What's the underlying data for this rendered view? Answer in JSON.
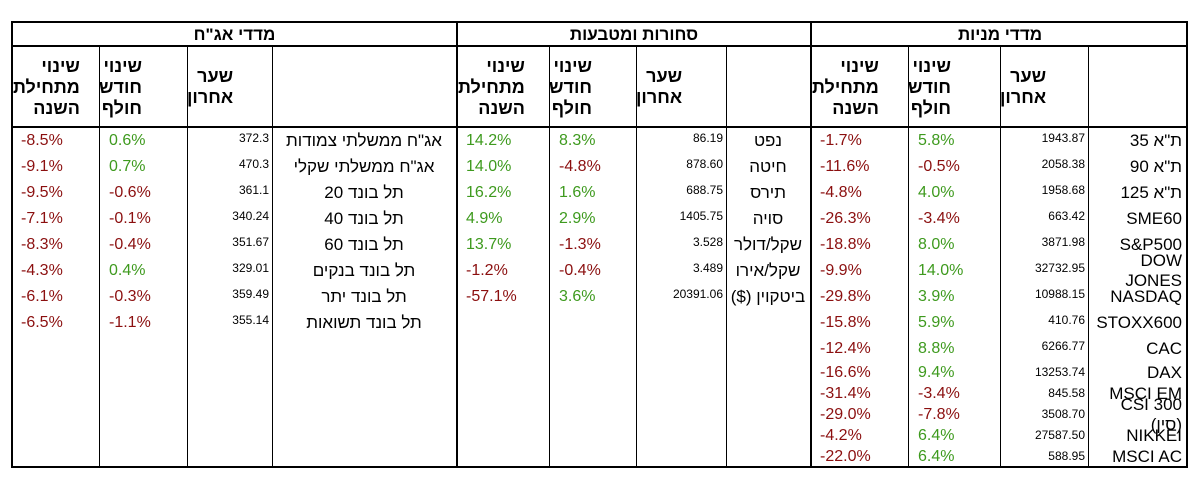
{
  "sections": {
    "stocks": {
      "title": "מדדי מניות",
      "headers": {
        "name": "",
        "last": "שער\nאחרון",
        "month": "שינוי\nחודש\nחולף",
        "ytd": "שינוי\nמתחילת\nהשנה"
      },
      "rows": [
        {
          "name": "ת\"א 35",
          "last": "1943.87",
          "month": "5.8%",
          "ytd": "-1.7%"
        },
        {
          "name": "ת\"א 90",
          "last": "2058.38",
          "month": "-0.5%",
          "ytd": "-11.6%"
        },
        {
          "name": "ת\"א 125",
          "last": "1958.68",
          "month": "4.0%",
          "ytd": "-4.8%"
        },
        {
          "name": "SME60",
          "last": "663.42",
          "month": "-3.4%",
          "ytd": "-26.3%"
        },
        {
          "name": "S&P500",
          "last": "3871.98",
          "month": "8.0%",
          "ytd": "-18.8%"
        },
        {
          "name": "DOW JONES",
          "last": "32732.95",
          "month": "14.0%",
          "ytd": "-9.9%"
        },
        {
          "name": "NASDAQ",
          "last": "10988.15",
          "month": "3.9%",
          "ytd": "-29.8%"
        },
        {
          "name": "STOXX600",
          "last": "410.76",
          "month": "5.9%",
          "ytd": "-15.8%"
        },
        {
          "name": "CAC",
          "last": "6266.77",
          "month": "8.8%",
          "ytd": "-12.4%"
        },
        {
          "name": "DAX",
          "last": "13253.74",
          "month": "9.4%",
          "ytd": "-16.6%"
        },
        {
          "name": "MSCI EM",
          "last": "845.58",
          "month": "-3.4%",
          "ytd": "-31.4%"
        },
        {
          "name": "CSI 300 (סין)",
          "last": "3508.70",
          "month": "-7.8%",
          "ytd": "-29.0%"
        },
        {
          "name": "NIKKEI",
          "last": "27587.50",
          "month": "6.4%",
          "ytd": "-4.2%"
        },
        {
          "name": "MSCI AC",
          "last": "588.95",
          "month": "6.4%",
          "ytd": "-22.0%"
        }
      ]
    },
    "commodities": {
      "title": "סחורות ומטבעות",
      "headers": {
        "name": "",
        "last": "שער\nאחרון",
        "month": "שינוי\nחודש\nחולף",
        "ytd": "שינוי\nמתחילת\nהשנה"
      },
      "rows": [
        {
          "name": "נפט",
          "last": "86.19",
          "month": "8.3%",
          "ytd": "14.2%"
        },
        {
          "name": "חיטה",
          "last": "878.60",
          "month": "-4.8%",
          "ytd": "14.0%"
        },
        {
          "name": "תירס",
          "last": "688.75",
          "month": "1.6%",
          "ytd": "16.2%"
        },
        {
          "name": "סויה",
          "last": "1405.75",
          "month": "2.9%",
          "ytd": "4.9%"
        },
        {
          "name": "שקל/דולר",
          "last": "3.528",
          "month": "-1.3%",
          "ytd": "13.7%"
        },
        {
          "name": "שקל/אירו",
          "last": "3.489",
          "month": "-0.4%",
          "ytd": "-1.2%"
        },
        {
          "name": "ביטקוין ($)",
          "last": "20391.06",
          "month": "3.6%",
          "ytd": "-57.1%"
        }
      ]
    },
    "bonds": {
      "title": "מדדי אג\"ח",
      "headers": {
        "name": "",
        "last": "שער\nאחרון",
        "month": "שינוי\nחודש\nחולף",
        "ytd": "שינוי\nמתחילת\nהשנה"
      },
      "rows": [
        {
          "name": "אג\"ח ממשלתי צמודות",
          "last": "372.3",
          "month": "0.6%",
          "ytd": "-8.5%"
        },
        {
          "name": "אג\"ח ממשלתי שקלי",
          "last": "470.3",
          "month": "0.7%",
          "ytd": "-9.1%"
        },
        {
          "name": "תל בונד 20",
          "last": "361.1",
          "month": "-0.6%",
          "ytd": "-9.5%"
        },
        {
          "name": "תל בונד 40",
          "last": "340.24",
          "month": "-0.1%",
          "ytd": "-7.1%"
        },
        {
          "name": "תל בונד 60",
          "last": "351.67",
          "month": "-0.4%",
          "ytd": "-8.3%"
        },
        {
          "name": "תל בונד בנקים",
          "last": "329.01",
          "month": "0.4%",
          "ytd": "-4.3%"
        },
        {
          "name": "תל בונד יתר",
          "last": "359.49",
          "month": "-0.3%",
          "ytd": "-6.1%"
        },
        {
          "name": "תל בונד תשואות",
          "last": "355.14",
          "month": "-1.1%",
          "ytd": "-6.5%"
        }
      ]
    }
  },
  "colors": {
    "positive": "#3e9a1e",
    "negative": "#8b0f0f"
  }
}
